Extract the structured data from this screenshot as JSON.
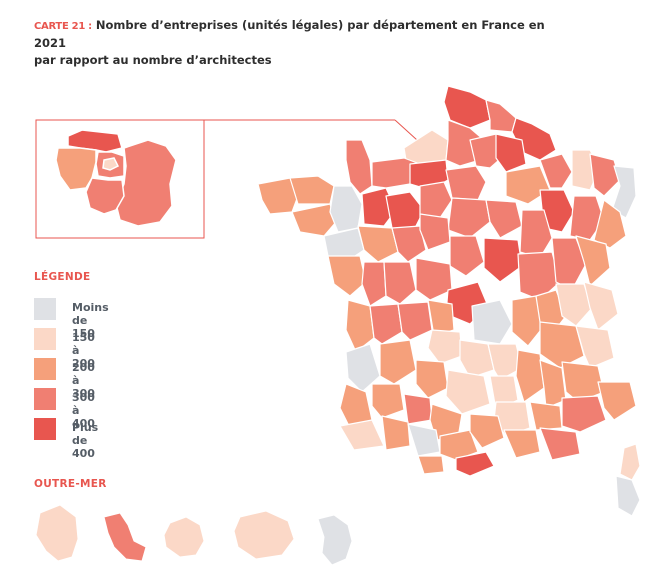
{
  "title": {
    "tag": "CARTE 21 :",
    "line1": " Nombre d’entreprises (unités légales) par département en France en 2021",
    "line2": "par rapport au nombre d’architectes"
  },
  "legend": {
    "heading": "LÉGENDE",
    "items": [
      {
        "label": "Moins de 150",
        "color": "#dfe1e5"
      },
      {
        "label": "150 à 200",
        "color": "#fbd8c7"
      },
      {
        "label": "200 à 300",
        "color": "#f5a07b"
      },
      {
        "label": "300 à 400",
        "color": "#f07f72"
      },
      {
        "label": "Plus de 400",
        "color": "#e8564f"
      }
    ]
  },
  "outremer": {
    "heading": "OUTRE-MER"
  },
  "colors": {
    "border": "#ffffff",
    "inset_frame": "#e8564f",
    "accent": "#e8564f"
  }
}
